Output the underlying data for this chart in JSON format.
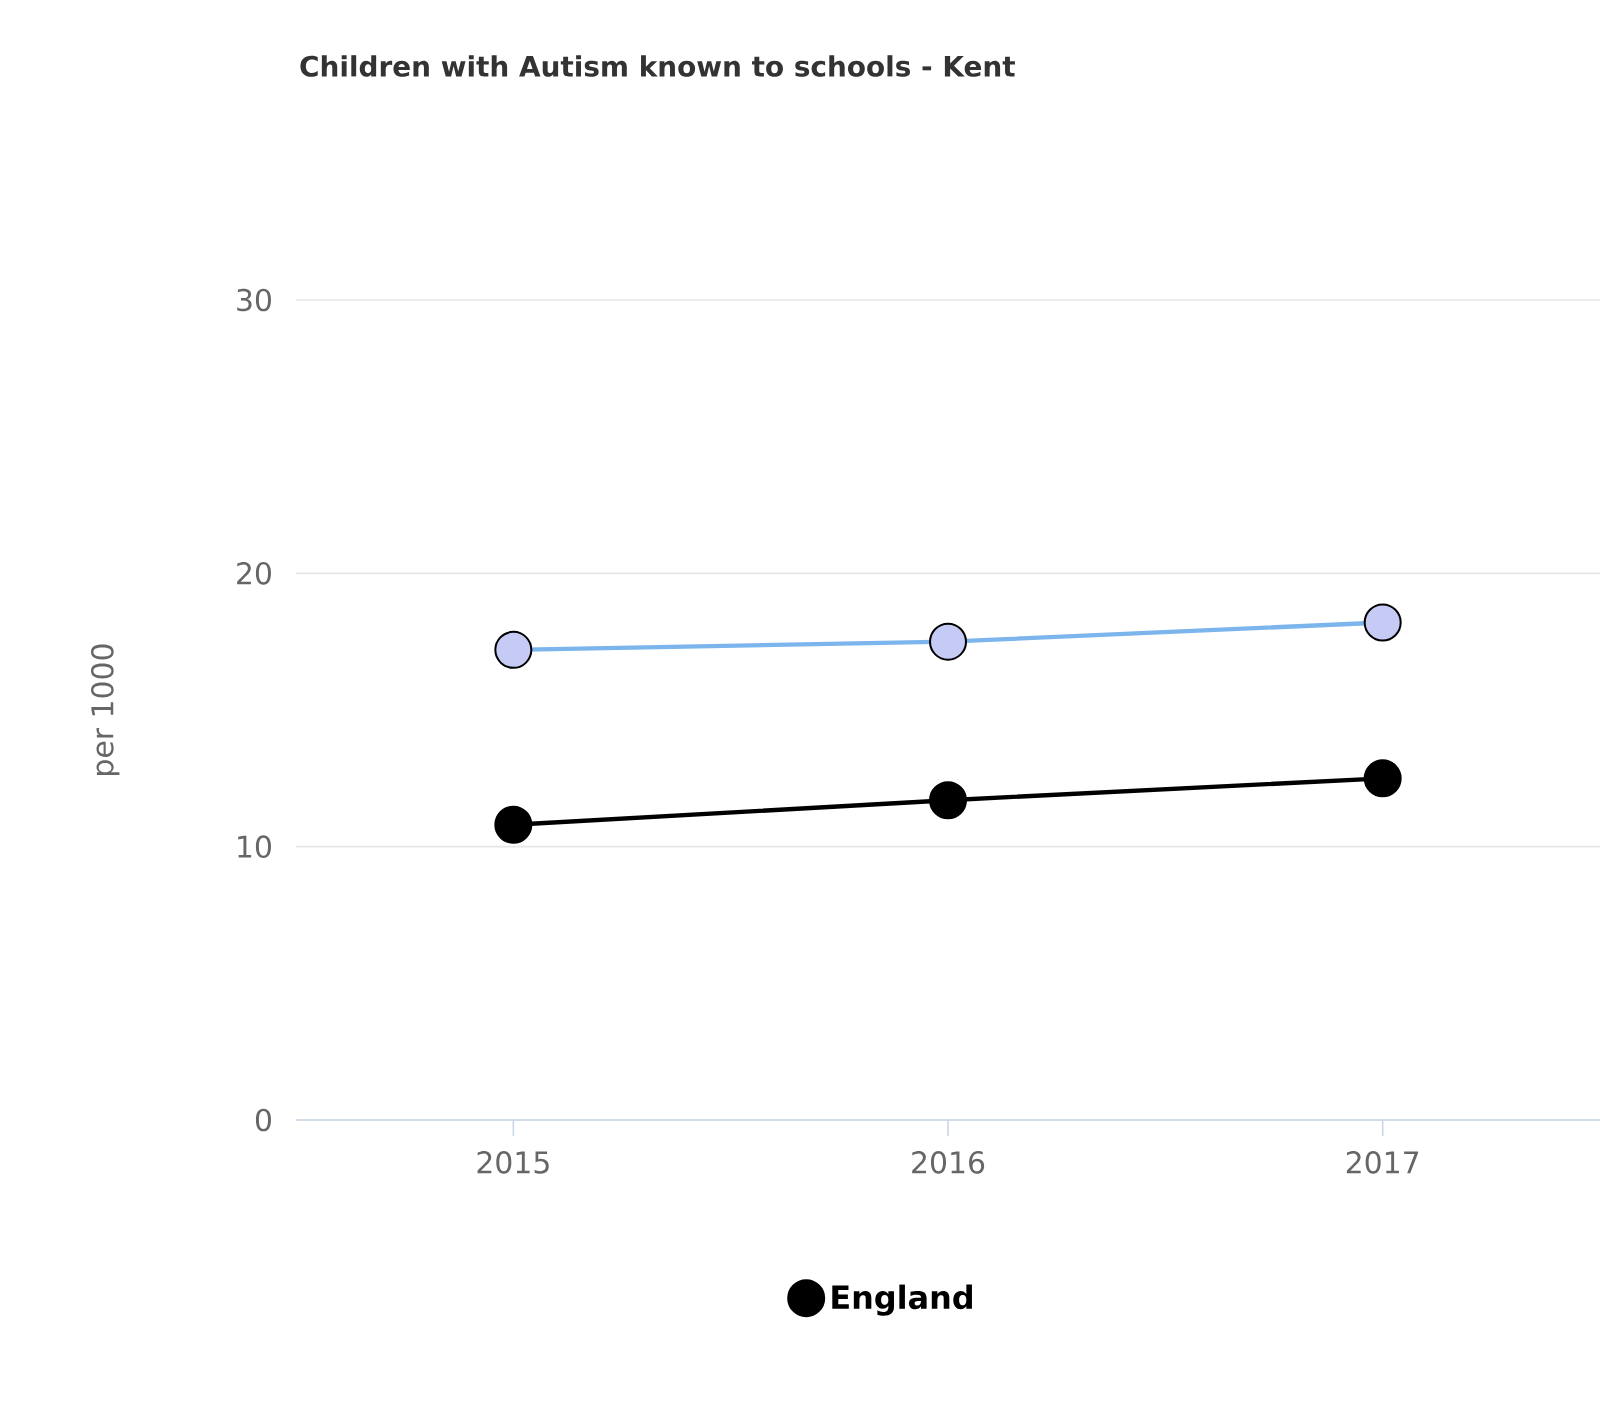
{
  "chart_data": {
    "type": "line",
    "title": "Children with Autism known to schools - Kent",
    "ylabel": "per 1000",
    "categories": [
      "2015",
      "2016",
      "2017"
    ],
    "series": [
      {
        "color": "#7cb5ec",
        "values": [
          17.2,
          17.5,
          18.2
        ]
      },
      {
        "name": "England",
        "color": "#000000",
        "values": [
          10.8,
          11.7,
          12.5
        ]
      }
    ],
    "ylim": [
      0,
      30
    ],
    "yticks": [
      0,
      10,
      20,
      30
    ],
    "grid": "y",
    "legend": "bottom",
    "marker": "circle",
    "line_style": "solid"
  }
}
